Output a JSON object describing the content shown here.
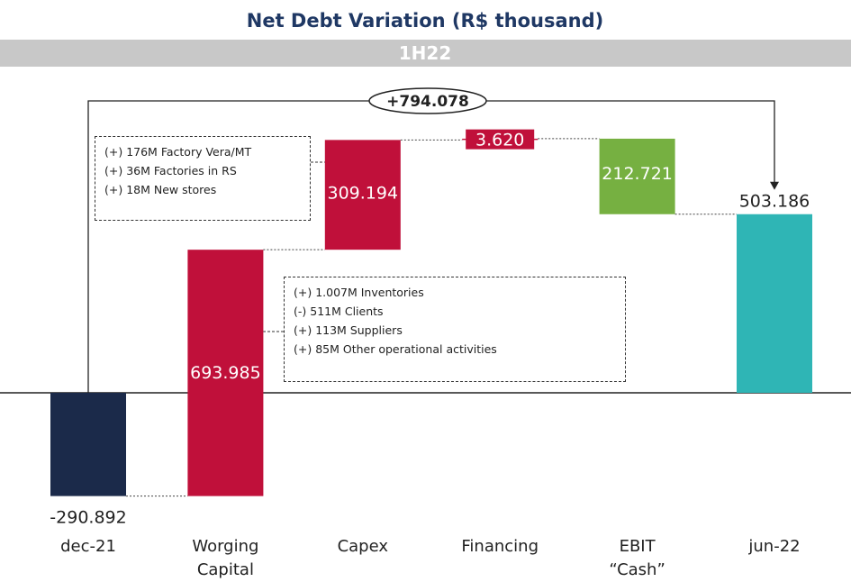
{
  "chart_data": {
    "type": "waterfall",
    "title": "Net Debt Variation (R$ thousand)",
    "subtitle": "1H22",
    "categories": [
      "dec-21",
      "Worging Capital",
      "Capex",
      "Financing",
      "EBIT “Cash”",
      "jun-22"
    ],
    "values": [
      -290.892,
      693.985,
      309.194,
      3.62,
      -212.721,
      503.186
    ],
    "value_labels": [
      "-290.892",
      "693.985",
      "309.194",
      "3.620",
      "212.721",
      "503.186"
    ],
    "colors": [
      "#1b2a4a",
      "#c0103a",
      "#c0103a",
      "#c0103a",
      "#76b041",
      "#2fb5b5"
    ],
    "total_label": "+794.078",
    "notes": [
      [
        "(+) 176M Factory Vera/MT",
        "(+) 36M Factories in RS",
        "(+) 18M New stores"
      ],
      [
        "(+) 1.007M Inventories",
        "(-) 511M Clients",
        "(+) 113M Suppliers",
        "(+) 85M Other operational activities"
      ]
    ]
  }
}
